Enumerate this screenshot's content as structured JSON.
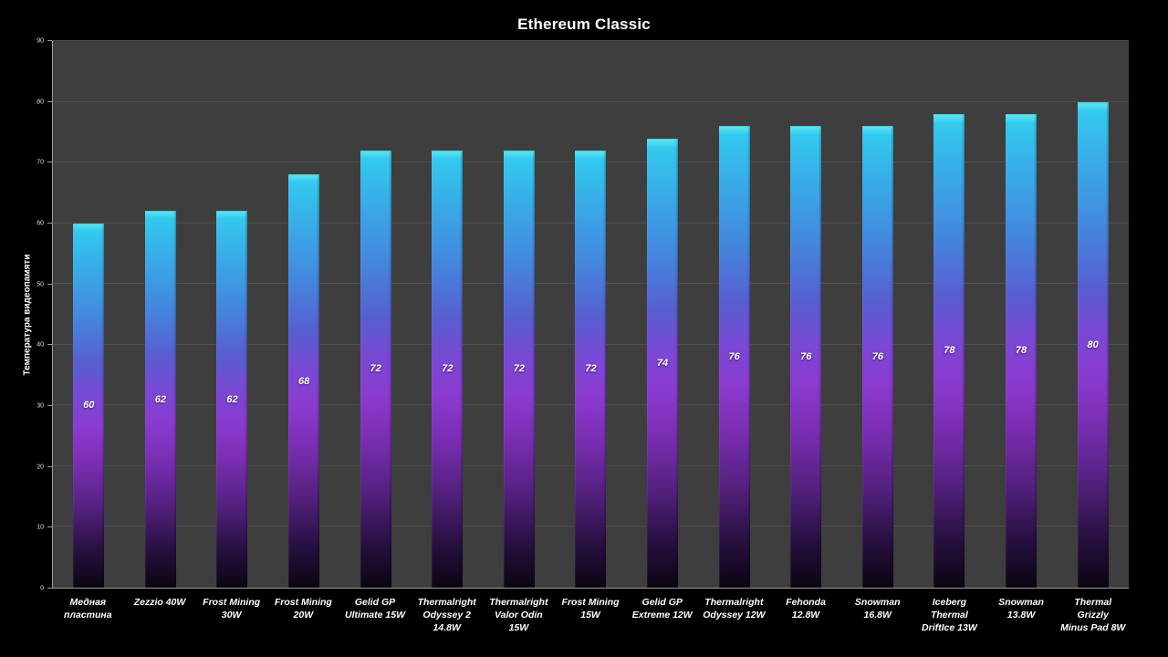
{
  "chart_data": {
    "type": "bar",
    "title": "Ethereum Classic",
    "ylabel": "Температура видеопамяти",
    "xlabel": "",
    "ylim": [
      0,
      90
    ],
    "ytick_interval": 10,
    "grid": true,
    "legend": "none",
    "categories": [
      "Медная\nпластина",
      "Zezzio 40W",
      "Frost Mining\n30W",
      "Frost Mining\n20W",
      "Gelid GP\nUltimate 15W",
      "Thermalright\nOdyssey 2\n14.8W",
      "Thermalright\nValor Odin 15W",
      "Frost Mining\n15W",
      "Gelid GP\nExtreme 12W",
      "Thermalright\nOdyssey 12W",
      "Fehonda 12.8W",
      "Snowman\n16.8W",
      "Iceberg Thermal\nDriftIce 13W",
      "Snowman\n13.8W",
      "Thermal Grizzly\nMinus Pad 8W"
    ],
    "values": [
      60,
      62,
      62,
      68,
      72,
      72,
      72,
      72,
      74,
      76,
      76,
      76,
      78,
      78,
      80
    ],
    "value_labels": [
      "60",
      "62",
      "62",
      "68",
      "72",
      "72",
      "72",
      "72",
      "74",
      "76",
      "76",
      "76",
      "78",
      "78",
      "80"
    ],
    "colors": {
      "page_background": "#000000",
      "plot_background": "#3e3e3e",
      "gridline": "#4f4f4f",
      "axis_line": "#9a9a9a",
      "text": "#ffffff",
      "bar_gradient_stops": [
        [
          0,
          "#63e8f2"
        ],
        [
          2,
          "#33c9ee"
        ],
        [
          12,
          "#38ace8"
        ],
        [
          26,
          "#4486dd"
        ],
        [
          38,
          "#575fd0"
        ],
        [
          48,
          "#7b47d4"
        ],
        [
          56,
          "#8a3bd0"
        ],
        [
          66,
          "#7a2eb2"
        ],
        [
          78,
          "#552180"
        ],
        [
          90,
          "#261040"
        ],
        [
          100,
          "#0c0512"
        ]
      ]
    }
  }
}
